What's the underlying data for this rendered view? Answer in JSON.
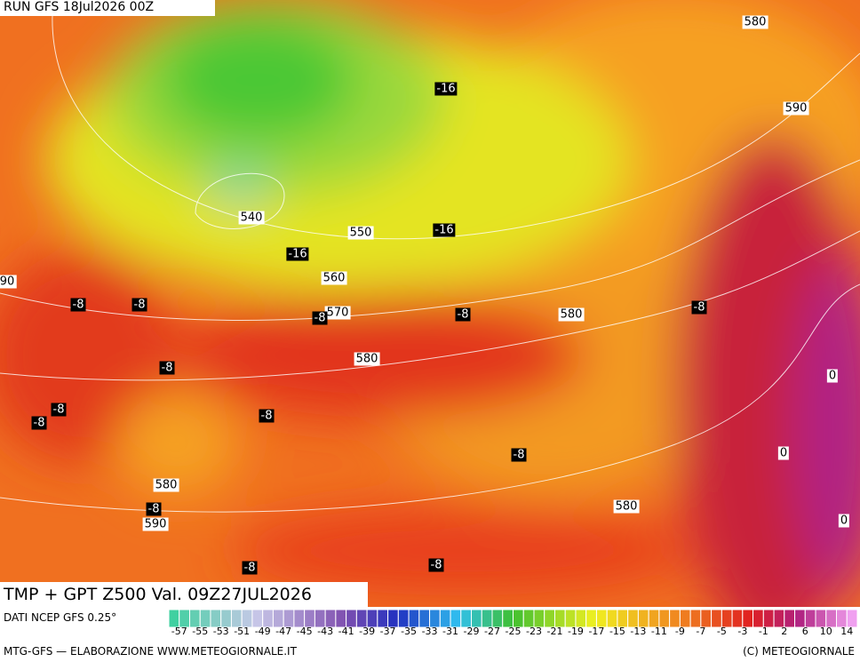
{
  "header": {
    "run": "RUN GFS 18Jul2026 00Z"
  },
  "map": {
    "title": "TMP + GPT Z500 Val. 09Z27JUL2026",
    "contour_labels": [
      "580",
      "-16",
      "590",
      "540",
      "550",
      "-16",
      "-16",
      "560",
      "90",
      "-8",
      "-8",
      "570",
      "-8",
      "-8",
      "580",
      "-8",
      "580",
      "-8",
      "0",
      "-8",
      "-8",
      "-8",
      "0",
      "-8",
      "580",
      "-8",
      "580",
      "590",
      "0",
      "-8",
      "-8"
    ]
  },
  "colorbar": {
    "labels": [
      -57,
      -55,
      -53,
      -51,
      -49,
      -47,
      -45,
      -43,
      -41,
      -39,
      -37,
      -35,
      -33,
      -31,
      -29,
      -27,
      -25,
      -23,
      -21,
      -19,
      -17,
      -15,
      -13,
      -11,
      -9,
      -7,
      -5,
      -3,
      -1,
      2,
      6,
      10,
      14
    ]
  },
  "footer": {
    "source": "DATI NCEP GFS 0.25°",
    "credit": "MTG-GFS — ELABORAZIONE WWW.METEOGIORNALE.IT",
    "copyright": "(C) METEOGIORNALE"
  }
}
